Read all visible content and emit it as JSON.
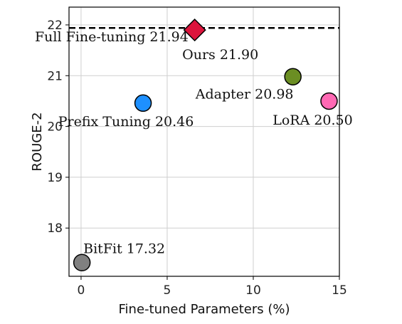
{
  "chart_data": {
    "type": "scatter",
    "xlabel": "Fine-tuned Parameters (%)",
    "ylabel": "ROUGE-2",
    "xlim": [
      -0.7,
      15
    ],
    "ylim": [
      17.05,
      22.35
    ],
    "xticks": [
      0,
      5,
      10,
      15
    ],
    "yticks": [
      18,
      19,
      20,
      21,
      22
    ],
    "grid": true,
    "points": [
      {
        "label": "Ours 21.90",
        "x": 6.6,
        "y": 21.9,
        "color": "#dc143c",
        "marker": "diamond"
      },
      {
        "label": "Adapter 20.98",
        "x": 12.3,
        "y": 20.98,
        "color": "#6b8e23",
        "marker": "circle"
      },
      {
        "label": "LoRA 20.50",
        "x": 14.4,
        "y": 20.5,
        "color": "#ff69b4",
        "marker": "circle"
      },
      {
        "label": "Prefix Tuning 20.46",
        "x": 3.6,
        "y": 20.46,
        "color": "#1e90ff",
        "marker": "circle"
      },
      {
        "label": "BitFit 17.32",
        "x": 0.05,
        "y": 17.32,
        "color": "#808080",
        "marker": "circle"
      }
    ],
    "reference_line": {
      "label": "Full Fine-tuning 21.94",
      "y": 21.94,
      "style": "dashed",
      "color": "#000000"
    }
  }
}
